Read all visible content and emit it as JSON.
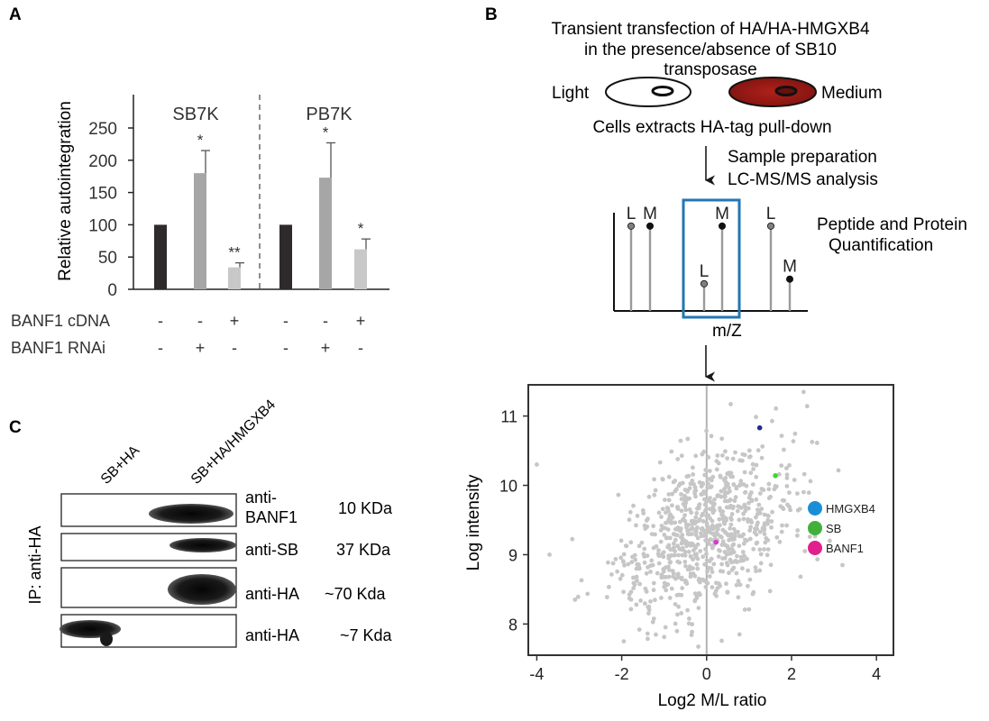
{
  "panels": {
    "a": {
      "letter": "A",
      "groups": [
        "SB7K",
        "PB7K"
      ],
      "chart_data": {
        "type": "bar",
        "ylabel": "Relative autointegration",
        "ylim": [
          0,
          250
        ],
        "yticks": [
          "0",
          "50",
          "100",
          "150",
          "200",
          "250"
        ],
        "series": [
          {
            "group": "SB7K",
            "value": 100,
            "error": 0,
            "color": "#2e2a2b",
            "sig": ""
          },
          {
            "group": "SB7K",
            "value": 180,
            "error": 35,
            "color": "#a6a6a6",
            "sig": "*"
          },
          {
            "group": "SB7K",
            "value": 34,
            "error": 7,
            "color": "#c8c8c8",
            "sig": "**"
          },
          {
            "group": "PB7K",
            "value": 100,
            "error": 0,
            "color": "#2e2a2b",
            "sig": ""
          },
          {
            "group": "PB7K",
            "value": 173,
            "error": 54,
            "color": "#a6a6a6",
            "sig": "*"
          },
          {
            "group": "PB7K",
            "value": 62,
            "error": 16,
            "color": "#c8c8c8",
            "sig": "*"
          }
        ]
      },
      "conditions": [
        {
          "label": "BANF1 cDNA",
          "signs": [
            "-",
            "-",
            "+",
            "-",
            "-",
            "+"
          ]
        },
        {
          "label": "BANF1 RNAi",
          "signs": [
            "-",
            "+",
            "-",
            "-",
            "+",
            "-"
          ]
        }
      ]
    },
    "b": {
      "letter": "B",
      "workflow": {
        "title_lines": [
          "Transient transfection of HA/HA-HMGXB4",
          "in the presence/absence of SB10",
          "transposase"
        ],
        "light_label": "Light",
        "medium_label": "Medium",
        "extract_text": "Cells extracts HA-tag pull-down",
        "prep_lines": [
          "Sample preparation",
          "LC-MS/MS analysis"
        ],
        "quant_lines": [
          "Peptide and Protein",
          "Quantification"
        ],
        "mz_label": "m/Z",
        "peaks": [
          {
            "label": "L",
            "rel": 0.72
          },
          {
            "label": "M",
            "rel": 0.72
          },
          {
            "label": "L",
            "rel": 0.22
          },
          {
            "label": "M",
            "rel": 0.72
          },
          {
            "label": "L",
            "rel": 0.72
          },
          {
            "label": "M",
            "rel": 0.26
          }
        ]
      },
      "scatter": {
        "chart_data": {
          "type": "scatter",
          "xlabel": "Log2 M/L ratio",
          "ylabel": "Log intensity",
          "xlim": [
            -4.2,
            4.4
          ],
          "ylim": [
            7.55,
            11.45
          ],
          "xticks": [
            -4,
            -2,
            0,
            2,
            4
          ],
          "yticks": [
            8,
            9,
            10,
            11
          ],
          "vline_x": 0,
          "background_color": "#c6c6c6",
          "highlighted": [
            {
              "name": "HMGXB4",
              "x": 1.25,
              "y": 10.83,
              "color": "#1b2d8f"
            },
            {
              "name": "SB",
              "x": 1.62,
              "y": 10.14,
              "color": "#3fd62c"
            },
            {
              "name": "BANF1",
              "x": 0.22,
              "y": 9.18,
              "color": "#d838c9"
            }
          ]
        },
        "legend": [
          {
            "label": "HMGXB4",
            "color": "#1a8fd6"
          },
          {
            "label": "SB",
            "color": "#41b03a"
          },
          {
            "label": "BANF1",
            "color": "#e0208c"
          }
        ]
      }
    },
    "c": {
      "letter": "C",
      "lanes": [
        "SB+HA",
        "SB+HA/HMGXB4"
      ],
      "ip_label": "IP: anti-HA",
      "blots": [
        {
          "antibody": "anti-\nBANF1",
          "size": "10 KDa"
        },
        {
          "antibody": "anti-SB",
          "size": "37 KDa"
        },
        {
          "antibody": "anti-HA",
          "size": "~70 Kda"
        },
        {
          "antibody": "anti-HA",
          "size": "~7 Kda"
        }
      ]
    }
  }
}
